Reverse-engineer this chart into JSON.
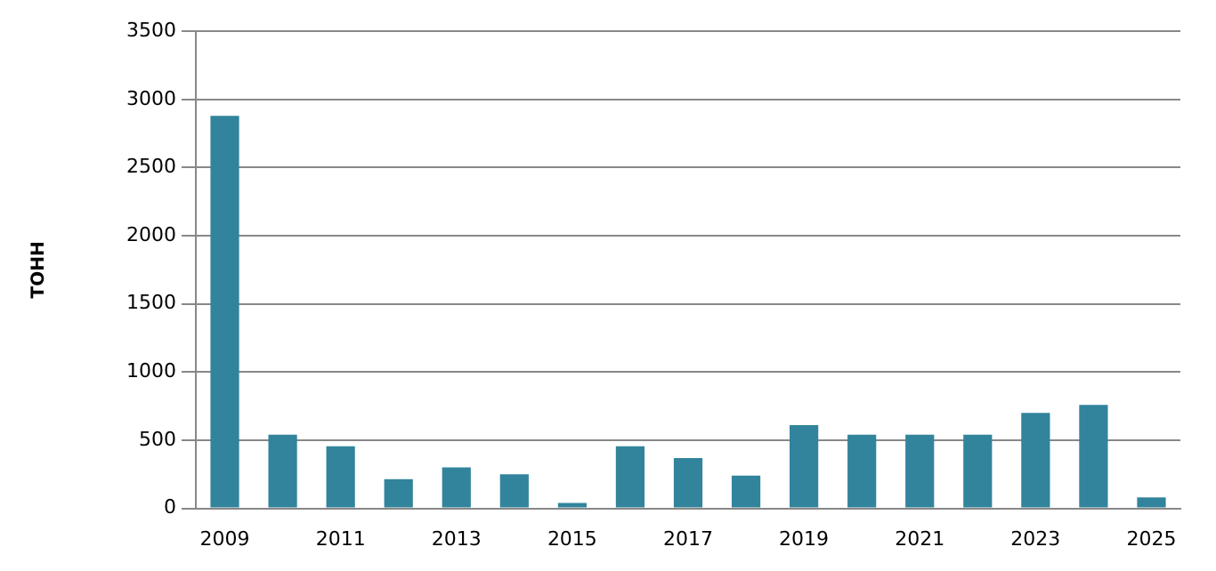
{
  "chart_data": {
    "type": "bar",
    "ylabel": "ТОНН",
    "categories": [
      "2009",
      null,
      "2011",
      null,
      "2013",
      null,
      "2015",
      null,
      "2017",
      null,
      "2019",
      null,
      "2021",
      null,
      "2023",
      null,
      "2025"
    ],
    "values": [
      2880,
      540,
      455,
      215,
      300,
      250,
      40,
      455,
      370,
      240,
      610,
      540,
      540,
      540,
      700,
      760,
      80
    ],
    "color": "#31849b",
    "ylim": [
      0,
      3500
    ],
    "yticks": [
      0,
      500,
      1000,
      1500,
      2000,
      2500,
      3000,
      3500
    ],
    "grid": "y",
    "legend": false
  }
}
